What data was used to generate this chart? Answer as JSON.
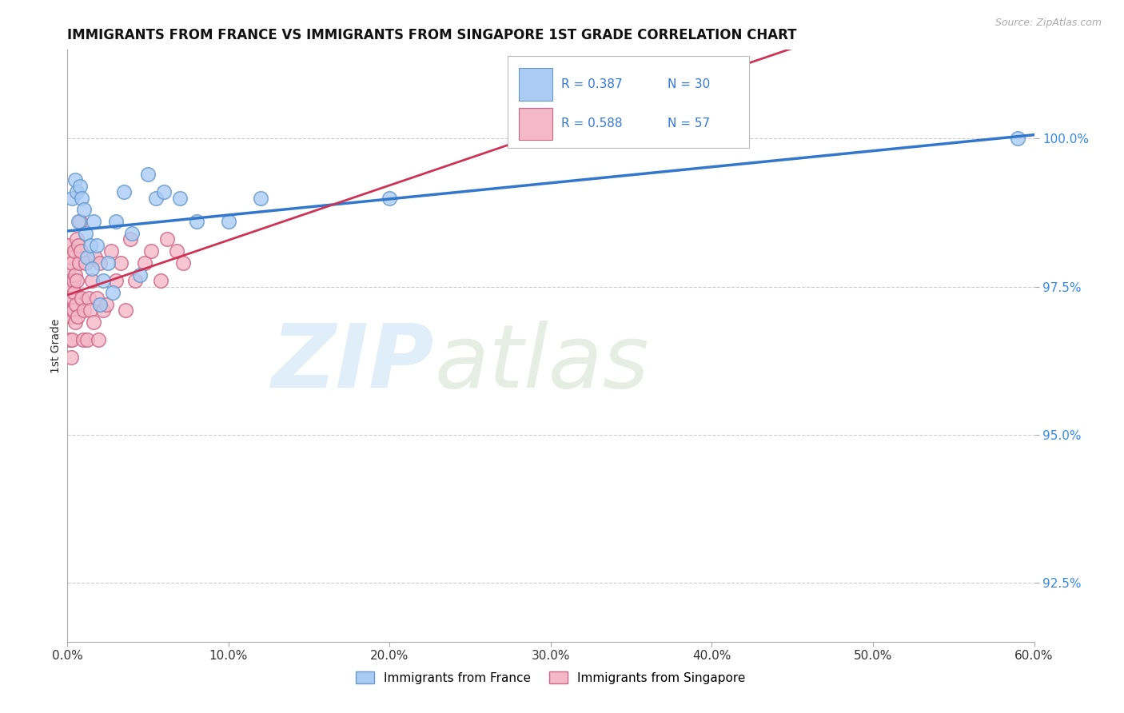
{
  "title": "IMMIGRANTS FROM FRANCE VS IMMIGRANTS FROM SINGAPORE 1ST GRADE CORRELATION CHART",
  "source_text": "Source: ZipAtlas.com",
  "ylabel": "1st Grade",
  "xlabel": "",
  "xlim": [
    0.0,
    60.0
  ],
  "ylim": [
    91.5,
    101.5
  ],
  "yticks": [
    92.5,
    95.0,
    97.5,
    100.0
  ],
  "ytick_labels": [
    "92.5%",
    "95.0%",
    "97.5%",
    "100.0%"
  ],
  "xticks": [
    0.0,
    10.0,
    20.0,
    30.0,
    40.0,
    50.0,
    60.0
  ],
  "xtick_labels": [
    "0.0%",
    "10.0%",
    "20.0%",
    "30.0%",
    "40.0%",
    "50.0%",
    "60.0%"
  ],
  "legend_france_label": "Immigrants from France",
  "legend_singapore_label": "Immigrants from Singapore",
  "france_color": "#aaccf4",
  "singapore_color": "#f4b8c8",
  "france_edge_color": "#6699cc",
  "singapore_edge_color": "#cc6688",
  "france_line_color": "#3377cc",
  "singapore_line_color": "#cc3355",
  "france_R": 0.387,
  "france_N": 30,
  "singapore_R": 0.588,
  "singapore_N": 57,
  "france_x": [
    0.3,
    0.5,
    0.6,
    0.7,
    0.8,
    0.9,
    1.0,
    1.1,
    1.2,
    1.4,
    1.5,
    1.6,
    1.8,
    2.0,
    2.2,
    2.5,
    2.8,
    3.0,
    3.5,
    4.0,
    4.5,
    5.0,
    5.5,
    6.0,
    7.0,
    8.0,
    10.0,
    12.0,
    20.0,
    59.0
  ],
  "france_y": [
    99.0,
    99.3,
    99.1,
    98.6,
    99.2,
    99.0,
    98.8,
    98.4,
    98.0,
    98.2,
    97.8,
    98.6,
    98.2,
    97.2,
    97.6,
    97.9,
    97.4,
    98.6,
    99.1,
    98.4,
    97.7,
    99.4,
    99.0,
    99.1,
    99.0,
    98.6,
    98.6,
    99.0,
    99.0,
    100.0
  ],
  "singapore_x": [
    0.05,
    0.07,
    0.09,
    0.11,
    0.13,
    0.15,
    0.17,
    0.19,
    0.21,
    0.23,
    0.25,
    0.27,
    0.29,
    0.31,
    0.33,
    0.35,
    0.37,
    0.39,
    0.41,
    0.44,
    0.47,
    0.5,
    0.53,
    0.56,
    0.6,
    0.65,
    0.7,
    0.75,
    0.8,
    0.85,
    0.9,
    0.95,
    1.0,
    1.1,
    1.2,
    1.3,
    1.4,
    1.5,
    1.6,
    1.7,
    1.8,
    1.9,
    2.0,
    2.2,
    2.4,
    2.7,
    3.0,
    3.3,
    3.6,
    3.9,
    4.2,
    4.8,
    5.2,
    5.8,
    6.2,
    6.8,
    7.2
  ],
  "singapore_y": [
    98.2,
    97.5,
    97.8,
    97.2,
    97.5,
    96.6,
    98.0,
    97.1,
    97.0,
    97.6,
    96.3,
    97.9,
    96.6,
    97.3,
    97.1,
    97.5,
    97.1,
    97.6,
    98.1,
    97.4,
    96.9,
    97.7,
    97.2,
    98.3,
    97.6,
    97.0,
    98.2,
    97.9,
    98.6,
    98.1,
    97.3,
    96.6,
    97.1,
    97.9,
    96.6,
    97.3,
    97.1,
    97.6,
    96.9,
    98.0,
    97.3,
    96.6,
    97.9,
    97.1,
    97.2,
    98.1,
    97.6,
    97.9,
    97.1,
    98.3,
    97.6,
    97.9,
    98.1,
    97.6,
    98.3,
    98.1,
    97.9
  ]
}
